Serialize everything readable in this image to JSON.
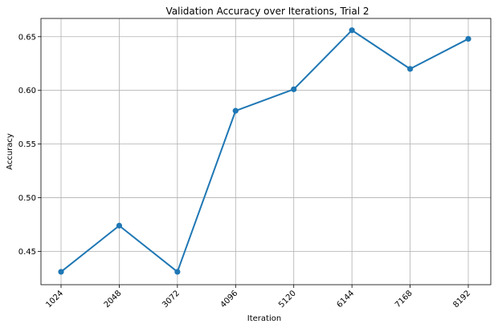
{
  "chart_data": {
    "type": "line",
    "title": "Validation Accuracy over Iterations, Trial 2",
    "xlabel": "Iteration",
    "ylabel": "Accuracy",
    "x": [
      "1024",
      "2048",
      "3072",
      "4096",
      "5120",
      "6144",
      "7168",
      "8192"
    ],
    "series": [
      {
        "values": [
          0.431,
          0.474,
          0.431,
          0.581,
          0.601,
          0.656,
          0.62,
          0.648
        ]
      }
    ],
    "yticks": [
      "0.45",
      "0.50",
      "0.55",
      "0.60",
      "0.65"
    ],
    "ylim": [
      0.419,
      0.667
    ],
    "grid": true,
    "line_color": "#1f77b4",
    "marker": "circle"
  }
}
